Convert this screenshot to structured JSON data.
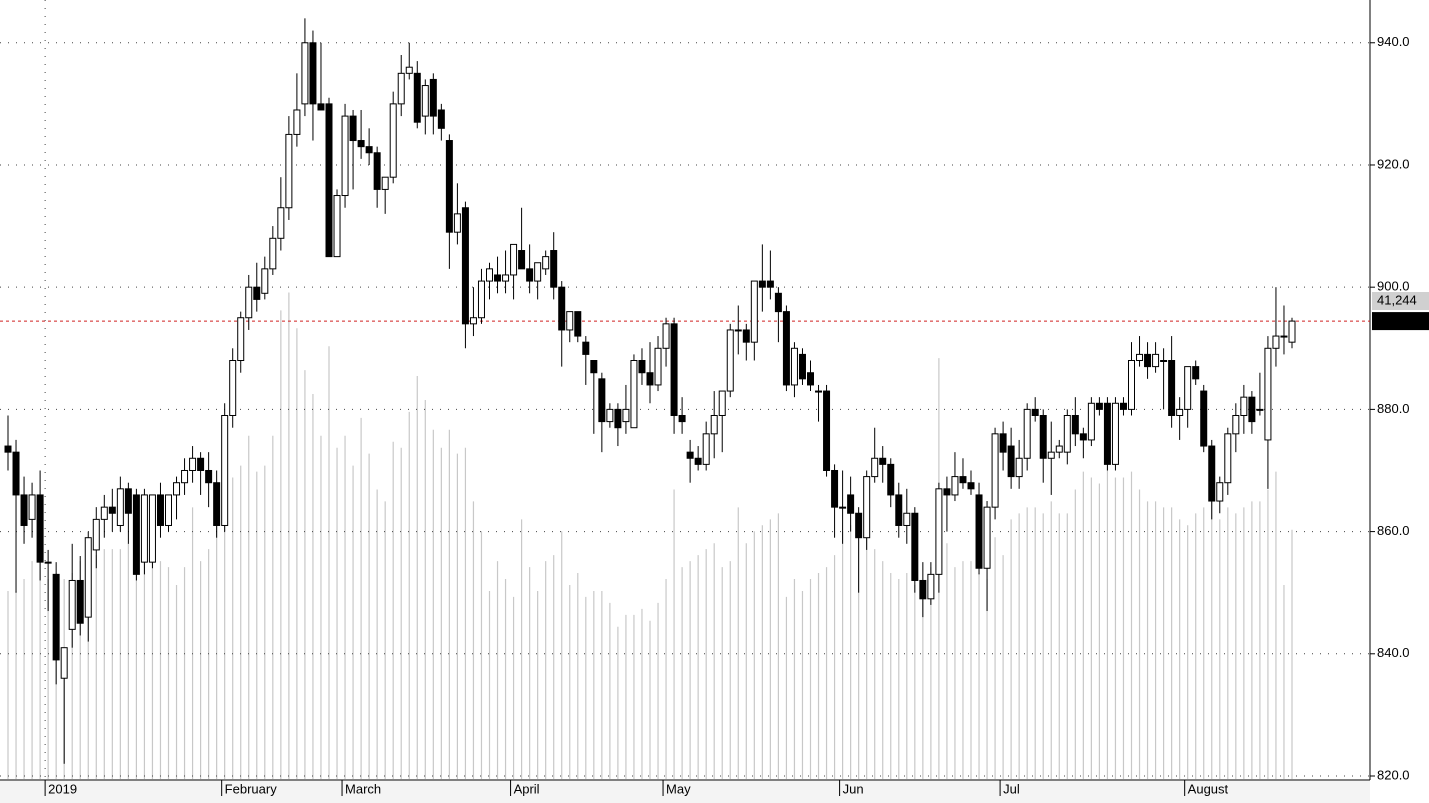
{
  "chart_data": {
    "type": "candlestick",
    "ylim": [
      820,
      947
    ],
    "yticks": [
      {
        "value": 820,
        "label": "820.0"
      },
      {
        "value": 840,
        "label": "840.0"
      },
      {
        "value": 860,
        "label": "860.0"
      },
      {
        "value": 880,
        "label": "880.0"
      },
      {
        "value": 900,
        "label": "900.0"
      },
      {
        "value": 920,
        "label": "920.0"
      },
      {
        "value": 940,
        "label": "940.0"
      }
    ],
    "volume_lim": [
      0,
      130000
    ],
    "grid": true,
    "up_color": "#ffffff",
    "down_color": "#000000",
    "volume_color": "#c8c8c8",
    "ref_line_color": "#d02020",
    "last_volume_label": "41,244",
    "categories": [
      null,
      null,
      null,
      null,
      null,
      "2019",
      null,
      null,
      null,
      null,
      null,
      null,
      null,
      null,
      null,
      null,
      null,
      null,
      null,
      null,
      null,
      null,
      null,
      null,
      null,
      null,
      null,
      "February",
      null,
      null,
      null,
      null,
      null,
      null,
      null,
      null,
      null,
      null,
      null,
      null,
      null,
      null,
      "March",
      null,
      null,
      null,
      null,
      null,
      null,
      null,
      null,
      null,
      null,
      null,
      null,
      null,
      null,
      null,
      null,
      null,
      null,
      null,
      null,
      "April",
      null,
      null,
      null,
      null,
      null,
      null,
      null,
      null,
      null,
      null,
      null,
      null,
      null,
      null,
      null,
      null,
      null,
      null,
      "May",
      null,
      null,
      null,
      null,
      null,
      null,
      null,
      null,
      null,
      null,
      null,
      null,
      null,
      null,
      null,
      null,
      null,
      null,
      null,
      null,
      null,
      "Jun",
      null,
      null,
      null,
      null,
      null,
      null,
      null,
      null,
      null,
      null,
      null,
      null,
      null,
      null,
      null,
      null,
      null,
      null,
      null,
      "Jul",
      null,
      null,
      null,
      null,
      null,
      null,
      null,
      null,
      null,
      null,
      null,
      null,
      null,
      null,
      null,
      null,
      null,
      null,
      null,
      null,
      null,
      null,
      "August",
      null,
      null,
      null,
      null,
      null,
      null,
      null,
      null,
      null,
      null,
      null,
      null,
      null
    ],
    "ohlc": [
      [
        874,
        879,
        870,
        873
      ],
      [
        873,
        875,
        850,
        866
      ],
      [
        866,
        869,
        858,
        861
      ],
      [
        862,
        868,
        859,
        866
      ],
      [
        866,
        870,
        852,
        855
      ],
      [
        855,
        857,
        847,
        855
      ],
      [
        853,
        855,
        835,
        839
      ],
      [
        836,
        840,
        822,
        841
      ],
      [
        844,
        858,
        841,
        852
      ],
      [
        852,
        856,
        843,
        845
      ],
      [
        846,
        860,
        842,
        859
      ],
      [
        857,
        864,
        854,
        862
      ],
      [
        862,
        866,
        859,
        864
      ],
      [
        864,
        867,
        860,
        863
      ],
      [
        861,
        869,
        860,
        867
      ],
      [
        867,
        868,
        858,
        863
      ],
      [
        866,
        867,
        852,
        853
      ],
      [
        855,
        867,
        853,
        866
      ],
      [
        855,
        866,
        854,
        866
      ],
      [
        866,
        868,
        859,
        861
      ],
      [
        861,
        866,
        860,
        866
      ],
      [
        866,
        869,
        862,
        868
      ],
      [
        868,
        872,
        866,
        870
      ],
      [
        870,
        874,
        868,
        872
      ],
      [
        872,
        873,
        866,
        870
      ],
      [
        870,
        873,
        864,
        868
      ],
      [
        868,
        870,
        859,
        861
      ],
      [
        861,
        881,
        860,
        879
      ],
      [
        879,
        890,
        877,
        888
      ],
      [
        888,
        896,
        886,
        895
      ],
      [
        895,
        902,
        893,
        900
      ],
      [
        900,
        904,
        896,
        898
      ],
      [
        899,
        905,
        898,
        903
      ],
      [
        903,
        910,
        902,
        908
      ],
      [
        908,
        918,
        906,
        913
      ],
      [
        913,
        928,
        911,
        925
      ],
      [
        925,
        935,
        923,
        929
      ],
      [
        930,
        944,
        928,
        940
      ],
      [
        940,
        942,
        924,
        930
      ],
      [
        930,
        940,
        929,
        929
      ],
      [
        930,
        931,
        905,
        905
      ],
      [
        905,
        916,
        905,
        915
      ],
      [
        915,
        930,
        913,
        928
      ],
      [
        928,
        929,
        916,
        924
      ],
      [
        924,
        929,
        921,
        923
      ],
      [
        923,
        926,
        920,
        922
      ],
      [
        922,
        923,
        913,
        916
      ],
      [
        916,
        918,
        912,
        918
      ],
      [
        918,
        932,
        917,
        930
      ],
      [
        930,
        938,
        928,
        935
      ],
      [
        935,
        940,
        934,
        936
      ],
      [
        935,
        937,
        926,
        927
      ],
      [
        928,
        934,
        925,
        933
      ],
      [
        934,
        935,
        925,
        928
      ],
      [
        929,
        930,
        924,
        926
      ],
      [
        924,
        925,
        903,
        909
      ],
      [
        909,
        917,
        907,
        912
      ],
      [
        913,
        914,
        890,
        894
      ],
      [
        894,
        900,
        892,
        895
      ],
      [
        895,
        903,
        894,
        901
      ],
      [
        901,
        904,
        898,
        903
      ],
      [
        902,
        905,
        899,
        901
      ],
      [
        901,
        906,
        899,
        902
      ],
      [
        902,
        907,
        898,
        907
      ],
      [
        906,
        913,
        903,
        903
      ],
      [
        903,
        907,
        899,
        901
      ],
      [
        901,
        904,
        898,
        904
      ],
      [
        903,
        906,
        902,
        905
      ],
      [
        906,
        909,
        898,
        900
      ],
      [
        900,
        901,
        887,
        893
      ],
      [
        893,
        896,
        891,
        896
      ],
      [
        896,
        896,
        891,
        892
      ],
      [
        891,
        892,
        884,
        889
      ],
      [
        888,
        888,
        876,
        886
      ],
      [
        885,
        886,
        873,
        878
      ],
      [
        878,
        881,
        877,
        880
      ],
      [
        880,
        881,
        874,
        877
      ],
      [
        878,
        884,
        876,
        880
      ],
      [
        877,
        889,
        877,
        888
      ],
      [
        888,
        890,
        884,
        886
      ],
      [
        886,
        891,
        881,
        884
      ],
      [
        884,
        892,
        883,
        890
      ],
      [
        890,
        895,
        887,
        894
      ],
      [
        894,
        895,
        876,
        879
      ],
      [
        879,
        882,
        876,
        878
      ],
      [
        873,
        875,
        868,
        872
      ],
      [
        872,
        874,
        870,
        871
      ],
      [
        871,
        878,
        870,
        876
      ],
      [
        876,
        883,
        872,
        879
      ],
      [
        879,
        883,
        873,
        883
      ],
      [
        883,
        894,
        882,
        893
      ],
      [
        893,
        897,
        889,
        893
      ],
      [
        893,
        894,
        888,
        891
      ],
      [
        891,
        901,
        888,
        901
      ],
      [
        901,
        907,
        896,
        900
      ],
      [
        901,
        906,
        898,
        900
      ],
      [
        899,
        900,
        891,
        896
      ],
      [
        896,
        897,
        883,
        884
      ],
      [
        884,
        891,
        882,
        890
      ],
      [
        889,
        890,
        884,
        885
      ],
      [
        886,
        888,
        883,
        884
      ],
      [
        883,
        884,
        878,
        883
      ],
      [
        883,
        884,
        869,
        870
      ],
      [
        870,
        871,
        859,
        864
      ],
      [
        864,
        870,
        858,
        864
      ],
      [
        866,
        869,
        860,
        863
      ],
      [
        863,
        864,
        850,
        859
      ],
      [
        859,
        870,
        857,
        869
      ],
      [
        869,
        877,
        868,
        872
      ],
      [
        872,
        874,
        868,
        871
      ],
      [
        871,
        872,
        864,
        866
      ],
      [
        866,
        868,
        859,
        861
      ],
      [
        861,
        867,
        858,
        863
      ],
      [
        863,
        864,
        850,
        852
      ],
      [
        852,
        855,
        846,
        849
      ],
      [
        849,
        855,
        848,
        853
      ],
      [
        853,
        868,
        850,
        867
      ],
      [
        867,
        869,
        860,
        866
      ],
      [
        866,
        873,
        865,
        869
      ],
      [
        869,
        872,
        867,
        868
      ],
      [
        868,
        870,
        866,
        867
      ],
      [
        866,
        868,
        853,
        854
      ],
      [
        854,
        865,
        847,
        864
      ],
      [
        864,
        877,
        862,
        876
      ],
      [
        876,
        878,
        870,
        873
      ],
      [
        874,
        877,
        867,
        869
      ],
      [
        869,
        875,
        867,
        872
      ],
      [
        872,
        881,
        870,
        880
      ],
      [
        880,
        882,
        878,
        879
      ],
      [
        879,
        880,
        868,
        872
      ],
      [
        872,
        878,
        866,
        873
      ],
      [
        873,
        875,
        872,
        874
      ],
      [
        873,
        880,
        871,
        879
      ],
      [
        879,
        882,
        874,
        876
      ],
      [
        876,
        877,
        872,
        875
      ],
      [
        875,
        882,
        874,
        881
      ],
      [
        881,
        882,
        879,
        880
      ],
      [
        881,
        882,
        870,
        871
      ],
      [
        871,
        882,
        870,
        881
      ],
      [
        881,
        882,
        879,
        880
      ],
      [
        880,
        891,
        879,
        888
      ],
      [
        888,
        892,
        887,
        889
      ],
      [
        889,
        891,
        885,
        887
      ],
      [
        887,
        891,
        886,
        889
      ],
      [
        888,
        890,
        880,
        888
      ],
      [
        888,
        892,
        877,
        879
      ],
      [
        879,
        882,
        875,
        880
      ],
      [
        880,
        887,
        877,
        887
      ],
      [
        887,
        888,
        884,
        885
      ],
      [
        883,
        884,
        873,
        874
      ],
      [
        874,
        875,
        862,
        865
      ],
      [
        865,
        869,
        863,
        868
      ],
      [
        868,
        877,
        866,
        876
      ],
      [
        876,
        881,
        873,
        879
      ],
      [
        879,
        884,
        876,
        882
      ],
      [
        882,
        883,
        876,
        878
      ],
      [
        880,
        886,
        879,
        880
      ],
      [
        875,
        892,
        867,
        890
      ],
      [
        890,
        900,
        887,
        892
      ],
      [
        892,
        897,
        889,
        892
      ],
      [
        891,
        895,
        890,
        894.45
      ]
    ],
    "volume": [
      31000,
      31000,
      33000,
      36000,
      47000,
      33000,
      34000,
      33000,
      34000,
      36000,
      37000,
      37000,
      38000,
      38000,
      38000,
      39000,
      39000,
      38000,
      36000,
      36000,
      35000,
      32000,
      35000,
      45000,
      36000,
      38000,
      43000,
      44000,
      50000,
      52000,
      57000,
      51000,
      52000,
      57000,
      78000,
      81000,
      75000,
      68000,
      64000,
      57000,
      72000,
      55000,
      57000,
      52000,
      60000,
      54000,
      48000,
      46000,
      56000,
      55000,
      61000,
      67000,
      63000,
      58000,
      55000,
      58000,
      54000,
      55000,
      46000,
      41000,
      31000,
      36000,
      33000,
      30000,
      43000,
      35000,
      31000,
      36000,
      37000,
      41000,
      32000,
      34000,
      30000,
      31000,
      31000,
      29000,
      25000,
      27000,
      27000,
      28000,
      26000,
      29000,
      33000,
      48000,
      35000,
      36000,
      37000,
      38000,
      39000,
      35000,
      36000,
      45000,
      39000,
      41000,
      42000,
      43000,
      44000,
      30000,
      33000,
      31000,
      33000,
      34000,
      35000,
      37000,
      41000,
      42000,
      42000,
      40000,
      38000,
      36000,
      34000,
      33000,
      34000,
      32000,
      31000,
      35000,
      70000,
      39000,
      35000,
      36000,
      36000,
      34000,
      33000,
      40000,
      37000,
      43000,
      44000,
      45000,
      45000,
      44000,
      46000,
      44000,
      44000,
      48000,
      51000,
      50000,
      49000,
      52000,
      50000,
      50000,
      51000,
      48000,
      46000,
      46000,
      45000,
      45000,
      43000,
      42000,
      44000,
      45000,
      46000,
      43000,
      45000,
      44000,
      45000,
      46000,
      46000,
      48000,
      51000,
      32000,
      41244
    ]
  }
}
